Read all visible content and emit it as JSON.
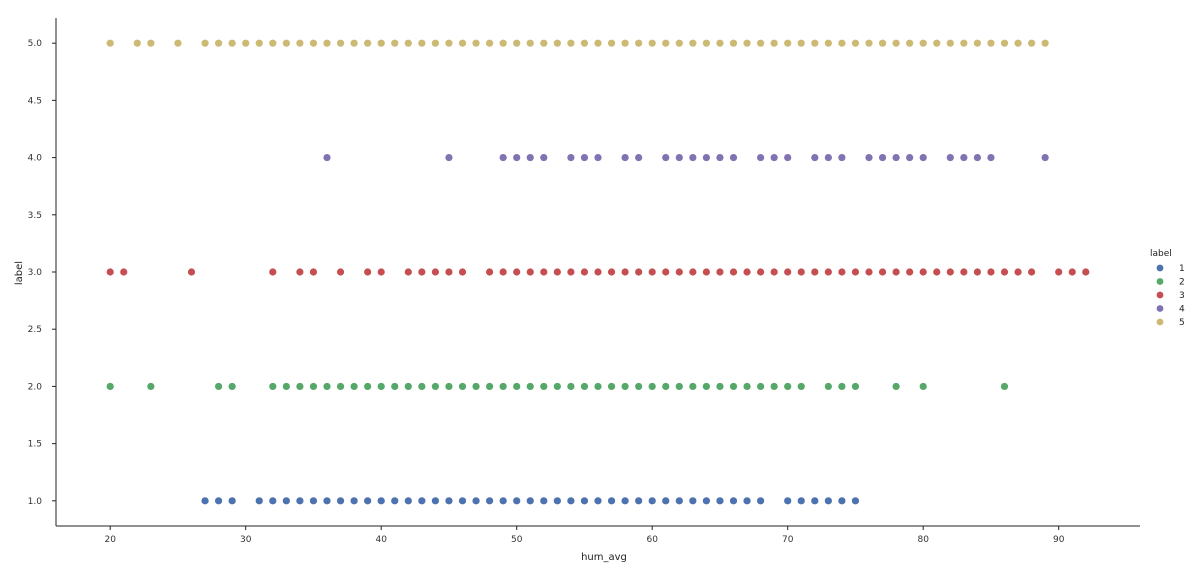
{
  "chart_data": {
    "type": "scatter",
    "xlabel": "hum_avg",
    "ylabel": "label",
    "xlim": [
      16,
      96
    ],
    "ylim": [
      0.78,
      5.22
    ],
    "x_ticks": [
      20,
      30,
      40,
      50,
      60,
      70,
      80,
      90
    ],
    "y_ticks": [
      "1.0",
      "1.5",
      "2.0",
      "2.5",
      "3.0",
      "3.5",
      "4.0",
      "4.5",
      "5.0"
    ],
    "grid": false,
    "legend": {
      "title": "label",
      "placement": "right"
    },
    "series": [
      {
        "name": "1",
        "color": "#4c72b0",
        "y": 1,
        "x": [
          27,
          28,
          29,
          31,
          32,
          33,
          34,
          35,
          36,
          37,
          38,
          39,
          40,
          41,
          42,
          43,
          44,
          45,
          46,
          47,
          48,
          49,
          50,
          51,
          52,
          53,
          54,
          55,
          56,
          57,
          58,
          59,
          60,
          61,
          62,
          63,
          64,
          65,
          66,
          67,
          68,
          70,
          71,
          72,
          73,
          74,
          75
        ]
      },
      {
        "name": "2",
        "color": "#55a868",
        "y": 2,
        "x": [
          20,
          23,
          28,
          29,
          32,
          33,
          34,
          35,
          36,
          37,
          38,
          39,
          40,
          41,
          42,
          43,
          44,
          45,
          46,
          47,
          48,
          49,
          50,
          51,
          52,
          53,
          54,
          55,
          56,
          57,
          58,
          59,
          60,
          61,
          62,
          63,
          64,
          65,
          66,
          67,
          68,
          69,
          70,
          71,
          73,
          74,
          75,
          78,
          80,
          86
        ]
      },
      {
        "name": "3",
        "color": "#c44e52",
        "y": 3,
        "x": [
          20,
          21,
          26,
          32,
          34,
          35,
          37,
          39,
          40,
          42,
          43,
          44,
          45,
          46,
          48,
          49,
          50,
          51,
          52,
          53,
          54,
          55,
          56,
          57,
          58,
          59,
          60,
          61,
          62,
          63,
          64,
          65,
          66,
          67,
          68,
          69,
          70,
          71,
          72,
          73,
          74,
          75,
          76,
          77,
          78,
          79,
          80,
          81,
          82,
          83,
          84,
          85,
          86,
          87,
          88,
          90,
          91,
          92
        ]
      },
      {
        "name": "4",
        "color": "#8172b2",
        "y": 4,
        "x": [
          36,
          45,
          49,
          50,
          51,
          52,
          54,
          55,
          56,
          58,
          59,
          61,
          62,
          63,
          64,
          65,
          66,
          68,
          69,
          70,
          72,
          73,
          74,
          76,
          77,
          78,
          79,
          80,
          82,
          83,
          84,
          85,
          89
        ]
      },
      {
        "name": "5",
        "color": "#ccb974",
        "y": 5,
        "x": [
          20,
          22,
          23,
          25,
          27,
          28,
          29,
          30,
          31,
          32,
          33,
          34,
          35,
          36,
          37,
          38,
          39,
          40,
          41,
          42,
          43,
          44,
          45,
          46,
          47,
          48,
          49,
          50,
          51,
          52,
          53,
          54,
          55,
          56,
          57,
          58,
          59,
          60,
          61,
          62,
          63,
          64,
          65,
          66,
          67,
          68,
          69,
          70,
          71,
          72,
          73,
          74,
          75,
          76,
          77,
          78,
          79,
          80,
          81,
          82,
          83,
          84,
          85,
          86,
          87,
          88,
          89
        ]
      }
    ]
  }
}
